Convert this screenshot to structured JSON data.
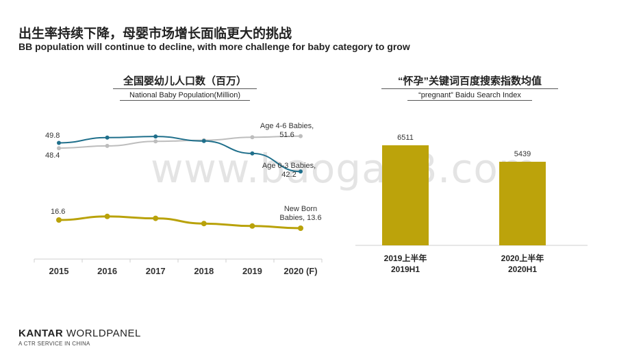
{
  "header": {
    "title_cn": "出生率持续下降，母婴市场增长面临更大的挑战",
    "title_en": "BB population will continue to decline, with more challenge for baby category to grow"
  },
  "watermark": "www.baogao8.com",
  "footer": {
    "brand_bold": "KANTAR",
    "brand_rest": " WORLDPANEL",
    "tagline": "A CTR SERVICE IN CHINA"
  },
  "colors": {
    "age46": "#bdbdbd",
    "age03": "#1f6f8b",
    "newborn": "#b9a20a",
    "bar": "#bca30b"
  },
  "chart_data": [
    {
      "type": "line",
      "title": "全国婴幼儿人口数（百万）",
      "subtitle": "National Baby Population(Million)",
      "x": [
        "2015",
        "2016",
        "2017",
        "2018",
        "2019",
        "2020 (F)"
      ],
      "series": [
        {
          "name": "Age 4-6 Babies,",
          "values": [
            48.4,
            49.0,
            50.2,
            50.5,
            51.3,
            51.6
          ],
          "start_label": "48.4",
          "end_label": "51.6"
        },
        {
          "name": "Age 0-3 Babies,",
          "values": [
            49.8,
            51.2,
            51.5,
            50.3,
            47.0,
            42.2
          ],
          "start_label": "49.8",
          "end_label": "42.2"
        },
        {
          "name_lines": [
            "New Born",
            "Babies, 13.6"
          ],
          "values": [
            16.6,
            17.9,
            17.2,
            15.3,
            14.4,
            13.6
          ],
          "start_label": "16.6"
        }
      ]
    },
    {
      "type": "bar",
      "title": "“怀孕”关键词百度搜索指数均值",
      "subtitle": "“pregnant” Baidu Search Index",
      "categories": [
        {
          "cn": "2019上半年",
          "en": "2019H1"
        },
        {
          "cn": "2020上半年",
          "en": "2020H1"
        }
      ],
      "values": [
        6511,
        5439
      ],
      "value_labels": [
        "6511",
        "5439"
      ]
    }
  ]
}
